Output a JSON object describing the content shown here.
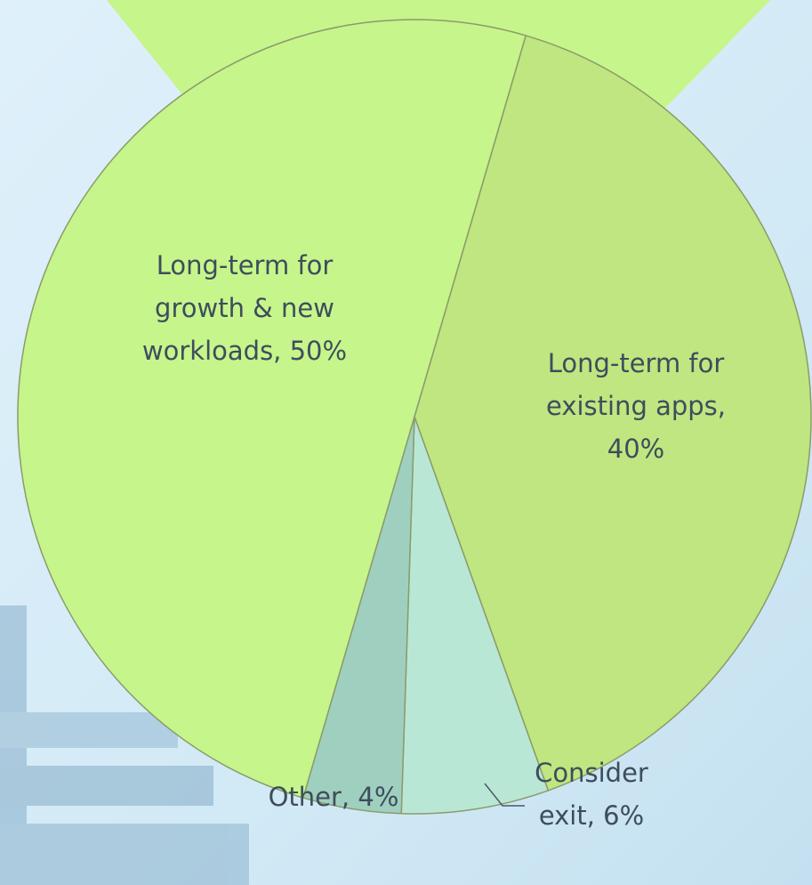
{
  "chart_data": {
    "type": "pie",
    "labels": [
      [
        "Long-term for",
        "existing apps,",
        "40%"
      ],
      [
        "Consider",
        "exit, 6%"
      ],
      [
        "Other, 4%"
      ],
      [
        "Long-term for",
        "growth & new",
        "workloads, 50%"
      ]
    ],
    "values": [
      40,
      6,
      4,
      50
    ],
    "colors": [
      "#bfe680",
      "#b9e7d6",
      "#9fd0bf",
      "#c6f58b"
    ]
  }
}
